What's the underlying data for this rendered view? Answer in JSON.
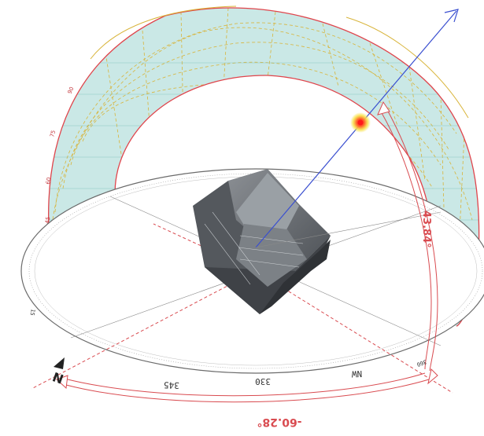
{
  "sun_path": {
    "altitude_label": "43.84°",
    "azimuth_label": "-60.28°",
    "dome_scale_labels": [
      "45",
      "60",
      "75",
      "90"
    ]
  },
  "compass": {
    "north_label": "N",
    "northwest_label": "NW",
    "bearing_labels": [
      "345",
      "330",
      "360",
      "15"
    ]
  },
  "colors": {
    "dome_fill": "#9ed6d2",
    "dome_edge": "#e0444b",
    "grid_yellow": "#d8b43a",
    "sun": "#ff1a1a",
    "sun_glow": "#f5e04a",
    "vector": "#3a4fd0",
    "arc_outline": "#d94b50",
    "compass_line": "#6b6b6b",
    "building": "#6f7378"
  },
  "icons": [
    "sun-marker-icon",
    "north-arrow-icon",
    "building-model-icon"
  ]
}
